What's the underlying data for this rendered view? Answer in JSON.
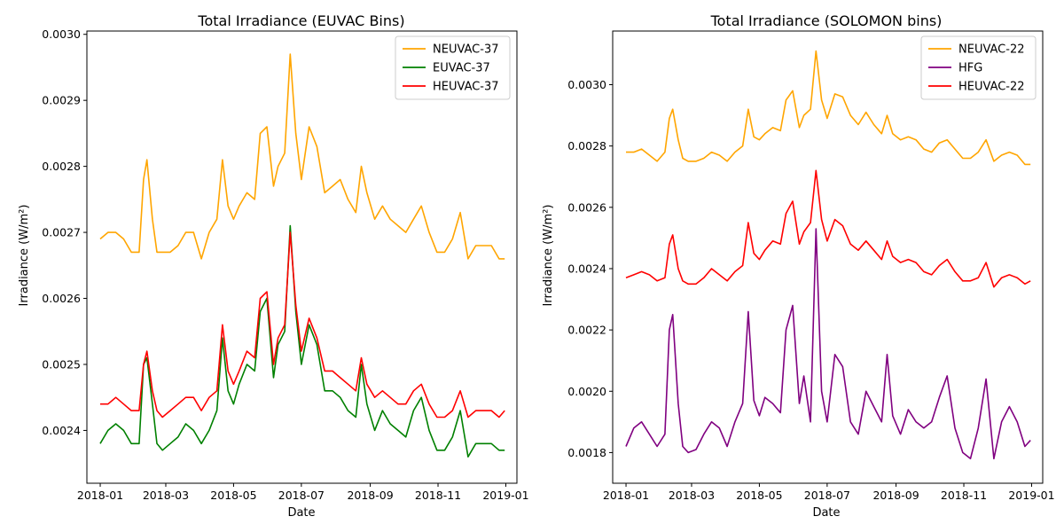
{
  "chart_data": [
    {
      "type": "line",
      "title": "Total Irradiance (EUVAC Bins)",
      "xlabel": "Date",
      "ylabel": "Irradiance (W/m²)",
      "xlim": [
        "2017-12-20",
        "2019-01-11"
      ],
      "ylim": [
        0.00232,
        0.003005
      ],
      "x_ticks": [
        "2018-01-01",
        "2018-03-01",
        "2018-05-01",
        "2018-07-01",
        "2018-09-01",
        "2018-11-01",
        "2019-01-01"
      ],
      "x_tick_labels": [
        "2018-01",
        "2018-03",
        "2018-05",
        "2018-07",
        "2018-09",
        "2018-11",
        "2019-01"
      ],
      "y_ticks": [
        0.0024,
        0.0025,
        0.0026,
        0.0027,
        0.0028,
        0.0029,
        0.003
      ],
      "y_tick_labels": [
        "0.0024",
        "0.0025",
        "0.0026",
        "0.0027",
        "0.0028",
        "0.0029",
        "0.0030"
      ],
      "legend_position": "top-right",
      "series": [
        {
          "name": "NEUVAC-37",
          "color": "#ffa500",
          "x": [
            "2018-01-01",
            "2018-01-08",
            "2018-01-15",
            "2018-01-22",
            "2018-01-29",
            "2018-02-05",
            "2018-02-09",
            "2018-02-12",
            "2018-02-17",
            "2018-02-21",
            "2018-02-26",
            "2018-03-05",
            "2018-03-12",
            "2018-03-19",
            "2018-03-26",
            "2018-04-02",
            "2018-04-09",
            "2018-04-16",
            "2018-04-21",
            "2018-04-26",
            "2018-05-01",
            "2018-05-06",
            "2018-05-13",
            "2018-05-20",
            "2018-05-25",
            "2018-05-31",
            "2018-06-06",
            "2018-06-10",
            "2018-06-16",
            "2018-06-21",
            "2018-06-26",
            "2018-07-01",
            "2018-07-08",
            "2018-07-15",
            "2018-07-22",
            "2018-07-29",
            "2018-08-05",
            "2018-08-12",
            "2018-08-19",
            "2018-08-24",
            "2018-08-29",
            "2018-09-05",
            "2018-09-12",
            "2018-09-19",
            "2018-09-26",
            "2018-10-03",
            "2018-10-10",
            "2018-10-17",
            "2018-10-24",
            "2018-10-31",
            "2018-11-07",
            "2018-11-14",
            "2018-11-21",
            "2018-11-28",
            "2018-12-05",
            "2018-12-12",
            "2018-12-19",
            "2018-12-26",
            "2018-12-31"
          ],
          "y": [
            0.00269,
            0.0027,
            0.0027,
            0.00269,
            0.00267,
            0.00267,
            0.00278,
            0.00281,
            0.00272,
            0.00267,
            0.00267,
            0.00267,
            0.00268,
            0.0027,
            0.0027,
            0.00266,
            0.0027,
            0.00272,
            0.00281,
            0.00274,
            0.00272,
            0.00274,
            0.00276,
            0.00275,
            0.00285,
            0.00286,
            0.00277,
            0.0028,
            0.00282,
            0.00297,
            0.00285,
            0.00278,
            0.00286,
            0.00283,
            0.00276,
            0.00277,
            0.00278,
            0.00275,
            0.00273,
            0.0028,
            0.00276,
            0.00272,
            0.00274,
            0.00272,
            0.00271,
            0.0027,
            0.00272,
            0.00274,
            0.0027,
            0.00267,
            0.00267,
            0.00269,
            0.00273,
            0.00266,
            0.00268,
            0.00268,
            0.00268,
            0.00266,
            0.00266
          ]
        },
        {
          "name": "EUVAC-37",
          "color": "#008000",
          "x": [
            "2018-01-01",
            "2018-01-08",
            "2018-01-15",
            "2018-01-22",
            "2018-01-29",
            "2018-02-05",
            "2018-02-09",
            "2018-02-12",
            "2018-02-17",
            "2018-02-21",
            "2018-02-26",
            "2018-03-05",
            "2018-03-12",
            "2018-03-19",
            "2018-03-26",
            "2018-04-02",
            "2018-04-09",
            "2018-04-16",
            "2018-04-21",
            "2018-04-26",
            "2018-05-01",
            "2018-05-06",
            "2018-05-13",
            "2018-05-20",
            "2018-05-25",
            "2018-05-31",
            "2018-06-06",
            "2018-06-10",
            "2018-06-16",
            "2018-06-21",
            "2018-06-26",
            "2018-07-01",
            "2018-07-08",
            "2018-07-15",
            "2018-07-22",
            "2018-07-29",
            "2018-08-05",
            "2018-08-12",
            "2018-08-19",
            "2018-08-24",
            "2018-08-29",
            "2018-09-05",
            "2018-09-12",
            "2018-09-19",
            "2018-09-26",
            "2018-10-03",
            "2018-10-10",
            "2018-10-17",
            "2018-10-24",
            "2018-10-31",
            "2018-11-07",
            "2018-11-14",
            "2018-11-21",
            "2018-11-28",
            "2018-12-05",
            "2018-12-12",
            "2018-12-19",
            "2018-12-26",
            "2018-12-31"
          ],
          "y": [
            0.00238,
            0.0024,
            0.00241,
            0.0024,
            0.00238,
            0.00238,
            0.0025,
            0.00251,
            0.00244,
            0.00238,
            0.00237,
            0.00238,
            0.00239,
            0.00241,
            0.0024,
            0.00238,
            0.0024,
            0.00243,
            0.00254,
            0.00246,
            0.00244,
            0.00247,
            0.0025,
            0.00249,
            0.00258,
            0.0026,
            0.00248,
            0.00253,
            0.00255,
            0.00271,
            0.00258,
            0.0025,
            0.00256,
            0.00253,
            0.00246,
            0.00246,
            0.00245,
            0.00243,
            0.00242,
            0.0025,
            0.00244,
            0.0024,
            0.00243,
            0.00241,
            0.0024,
            0.00239,
            0.00243,
            0.00245,
            0.0024,
            0.00237,
            0.00237,
            0.00239,
            0.00243,
            0.00236,
            0.00238,
            0.00238,
            0.00238,
            0.00237,
            0.00237
          ]
        },
        {
          "name": "HEUVAC-37",
          "color": "#ff0000",
          "x": [
            "2018-01-01",
            "2018-01-08",
            "2018-01-15",
            "2018-01-22",
            "2018-01-29",
            "2018-02-05",
            "2018-02-09",
            "2018-02-12",
            "2018-02-17",
            "2018-02-21",
            "2018-02-26",
            "2018-03-05",
            "2018-03-12",
            "2018-03-19",
            "2018-03-26",
            "2018-04-02",
            "2018-04-09",
            "2018-04-16",
            "2018-04-21",
            "2018-04-26",
            "2018-05-01",
            "2018-05-06",
            "2018-05-13",
            "2018-05-20",
            "2018-05-25",
            "2018-05-31",
            "2018-06-06",
            "2018-06-10",
            "2018-06-16",
            "2018-06-21",
            "2018-06-26",
            "2018-07-01",
            "2018-07-08",
            "2018-07-15",
            "2018-07-22",
            "2018-07-29",
            "2018-08-05",
            "2018-08-12",
            "2018-08-19",
            "2018-08-24",
            "2018-08-29",
            "2018-09-05",
            "2018-09-12",
            "2018-09-19",
            "2018-09-26",
            "2018-10-03",
            "2018-10-10",
            "2018-10-17",
            "2018-10-24",
            "2018-10-31",
            "2018-11-07",
            "2018-11-14",
            "2018-11-21",
            "2018-11-28",
            "2018-12-05",
            "2018-12-12",
            "2018-12-19",
            "2018-12-26",
            "2018-12-31"
          ],
          "y": [
            0.00244,
            0.00244,
            0.00245,
            0.00244,
            0.00243,
            0.00243,
            0.0025,
            0.00252,
            0.00246,
            0.00243,
            0.00242,
            0.00243,
            0.00244,
            0.00245,
            0.00245,
            0.00243,
            0.00245,
            0.00246,
            0.00256,
            0.00249,
            0.00247,
            0.00249,
            0.00252,
            0.00251,
            0.0026,
            0.00261,
            0.0025,
            0.00254,
            0.00256,
            0.0027,
            0.00259,
            0.00252,
            0.00257,
            0.00254,
            0.00249,
            0.00249,
            0.00248,
            0.00247,
            0.00246,
            0.00251,
            0.00247,
            0.00245,
            0.00246,
            0.00245,
            0.00244,
            0.00244,
            0.00246,
            0.00247,
            0.00244,
            0.00242,
            0.00242,
            0.00243,
            0.00246,
            0.00242,
            0.00243,
            0.00243,
            0.00243,
            0.00242,
            0.00243
          ]
        }
      ]
    },
    {
      "type": "line",
      "title": "Total Irradiance (SOLOMON bins)",
      "xlabel": "Date",
      "ylabel": "Irradiance (W/m²)",
      "xlim": [
        "2017-12-20",
        "2019-01-11"
      ],
      "ylim": [
        0.0017,
        0.003175
      ],
      "x_ticks": [
        "2018-01-01",
        "2018-03-01",
        "2018-05-01",
        "2018-07-01",
        "2018-09-01",
        "2018-11-01",
        "2019-01-01"
      ],
      "x_tick_labels": [
        "2018-01",
        "2018-03",
        "2018-05",
        "2018-07",
        "2018-09",
        "2018-11",
        "2019-01"
      ],
      "y_ticks": [
        0.0018,
        0.002,
        0.0022,
        0.0024,
        0.0026,
        0.0028,
        0.003
      ],
      "y_tick_labels": [
        "0.0018",
        "0.0020",
        "0.0022",
        "0.0024",
        "0.0026",
        "0.0028",
        "0.0030"
      ],
      "legend_position": "top-right",
      "series": [
        {
          "name": "NEUVAC-22",
          "color": "#ffa500",
          "x": [
            "2018-01-01",
            "2018-01-08",
            "2018-01-15",
            "2018-01-22",
            "2018-01-29",
            "2018-02-05",
            "2018-02-09",
            "2018-02-12",
            "2018-02-17",
            "2018-02-21",
            "2018-02-26",
            "2018-03-05",
            "2018-03-12",
            "2018-03-19",
            "2018-03-26",
            "2018-04-02",
            "2018-04-09",
            "2018-04-16",
            "2018-04-21",
            "2018-04-26",
            "2018-05-01",
            "2018-05-06",
            "2018-05-13",
            "2018-05-20",
            "2018-05-25",
            "2018-05-31",
            "2018-06-06",
            "2018-06-10",
            "2018-06-16",
            "2018-06-21",
            "2018-06-26",
            "2018-07-01",
            "2018-07-08",
            "2018-07-15",
            "2018-07-22",
            "2018-07-29",
            "2018-08-05",
            "2018-08-12",
            "2018-08-19",
            "2018-08-24",
            "2018-08-29",
            "2018-09-05",
            "2018-09-12",
            "2018-09-19",
            "2018-09-26",
            "2018-10-03",
            "2018-10-10",
            "2018-10-17",
            "2018-10-24",
            "2018-10-31",
            "2018-11-07",
            "2018-11-14",
            "2018-11-21",
            "2018-11-28",
            "2018-12-05",
            "2018-12-12",
            "2018-12-19",
            "2018-12-26",
            "2018-12-31"
          ],
          "y": [
            0.00278,
            0.00278,
            0.00279,
            0.00277,
            0.00275,
            0.00278,
            0.00289,
            0.00292,
            0.00282,
            0.00276,
            0.00275,
            0.00275,
            0.00276,
            0.00278,
            0.00277,
            0.00275,
            0.00278,
            0.0028,
            0.00292,
            0.00283,
            0.00282,
            0.00284,
            0.00286,
            0.00285,
            0.00295,
            0.00298,
            0.00286,
            0.0029,
            0.00292,
            0.00311,
            0.00295,
            0.00289,
            0.00297,
            0.00296,
            0.0029,
            0.00287,
            0.00291,
            0.00287,
            0.00284,
            0.0029,
            0.00284,
            0.00282,
            0.00283,
            0.00282,
            0.00279,
            0.00278,
            0.00281,
            0.00282,
            0.00279,
            0.00276,
            0.00276,
            0.00278,
            0.00282,
            0.00275,
            0.00277,
            0.00278,
            0.00277,
            0.00274,
            0.00274
          ]
        },
        {
          "name": "HFG",
          "color": "#800080",
          "x": [
            "2018-01-01",
            "2018-01-08",
            "2018-01-15",
            "2018-01-22",
            "2018-01-29",
            "2018-02-05",
            "2018-02-09",
            "2018-02-12",
            "2018-02-17",
            "2018-02-21",
            "2018-02-26",
            "2018-03-05",
            "2018-03-12",
            "2018-03-19",
            "2018-03-26",
            "2018-04-02",
            "2018-04-09",
            "2018-04-16",
            "2018-04-21",
            "2018-04-26",
            "2018-05-01",
            "2018-05-06",
            "2018-05-13",
            "2018-05-20",
            "2018-05-25",
            "2018-05-31",
            "2018-06-06",
            "2018-06-10",
            "2018-06-16",
            "2018-06-21",
            "2018-06-26",
            "2018-07-01",
            "2018-07-08",
            "2018-07-15",
            "2018-07-22",
            "2018-07-29",
            "2018-08-05",
            "2018-08-12",
            "2018-08-19",
            "2018-08-24",
            "2018-08-29",
            "2018-09-05",
            "2018-09-12",
            "2018-09-19",
            "2018-09-26",
            "2018-10-03",
            "2018-10-10",
            "2018-10-17",
            "2018-10-24",
            "2018-10-31",
            "2018-11-07",
            "2018-11-14",
            "2018-11-21",
            "2018-11-28",
            "2018-12-05",
            "2018-12-12",
            "2018-12-19",
            "2018-12-26",
            "2018-12-31"
          ],
          "y": [
            0.00182,
            0.00188,
            0.0019,
            0.00186,
            0.00182,
            0.00186,
            0.0022,
            0.00225,
            0.00196,
            0.00182,
            0.0018,
            0.00181,
            0.00186,
            0.0019,
            0.00188,
            0.00182,
            0.0019,
            0.00196,
            0.00226,
            0.00197,
            0.00192,
            0.00198,
            0.00196,
            0.00193,
            0.0022,
            0.00228,
            0.00196,
            0.00205,
            0.0019,
            0.00253,
            0.002,
            0.0019,
            0.00212,
            0.00208,
            0.0019,
            0.00186,
            0.002,
            0.00195,
            0.0019,
            0.00212,
            0.00192,
            0.00186,
            0.00194,
            0.0019,
            0.00188,
            0.0019,
            0.00198,
            0.00205,
            0.00188,
            0.0018,
            0.00178,
            0.00188,
            0.00204,
            0.00178,
            0.0019,
            0.00195,
            0.0019,
            0.00182,
            0.00184
          ]
        },
        {
          "name": "HEUVAC-22",
          "color": "#ff0000",
          "x": [
            "2018-01-01",
            "2018-01-08",
            "2018-01-15",
            "2018-01-22",
            "2018-01-29",
            "2018-02-05",
            "2018-02-09",
            "2018-02-12",
            "2018-02-17",
            "2018-02-21",
            "2018-02-26",
            "2018-03-05",
            "2018-03-12",
            "2018-03-19",
            "2018-03-26",
            "2018-04-02",
            "2018-04-09",
            "2018-04-16",
            "2018-04-21",
            "2018-04-26",
            "2018-05-01",
            "2018-05-06",
            "2018-05-13",
            "2018-05-20",
            "2018-05-25",
            "2018-05-31",
            "2018-06-06",
            "2018-06-10",
            "2018-06-16",
            "2018-06-21",
            "2018-06-26",
            "2018-07-01",
            "2018-07-08",
            "2018-07-15",
            "2018-07-22",
            "2018-07-29",
            "2018-08-05",
            "2018-08-12",
            "2018-08-19",
            "2018-08-24",
            "2018-08-29",
            "2018-09-05",
            "2018-09-12",
            "2018-09-19",
            "2018-09-26",
            "2018-10-03",
            "2018-10-10",
            "2018-10-17",
            "2018-10-24",
            "2018-10-31",
            "2018-11-07",
            "2018-11-14",
            "2018-11-21",
            "2018-11-28",
            "2018-12-05",
            "2018-12-12",
            "2018-12-19",
            "2018-12-26",
            "2018-12-31"
          ],
          "y": [
            0.00237,
            0.00238,
            0.00239,
            0.00238,
            0.00236,
            0.00237,
            0.00248,
            0.00251,
            0.0024,
            0.00236,
            0.00235,
            0.00235,
            0.00237,
            0.0024,
            0.00238,
            0.00236,
            0.00239,
            0.00241,
            0.00255,
            0.00245,
            0.00243,
            0.00246,
            0.00249,
            0.00248,
            0.00258,
            0.00262,
            0.00248,
            0.00252,
            0.00255,
            0.00272,
            0.00256,
            0.00249,
            0.00256,
            0.00254,
            0.00248,
            0.00246,
            0.00249,
            0.00246,
            0.00243,
            0.00249,
            0.00244,
            0.00242,
            0.00243,
            0.00242,
            0.00239,
            0.00238,
            0.00241,
            0.00243,
            0.00239,
            0.00236,
            0.00236,
            0.00237,
            0.00242,
            0.00234,
            0.00237,
            0.00238,
            0.00237,
            0.00235,
            0.00236
          ]
        }
      ]
    }
  ]
}
